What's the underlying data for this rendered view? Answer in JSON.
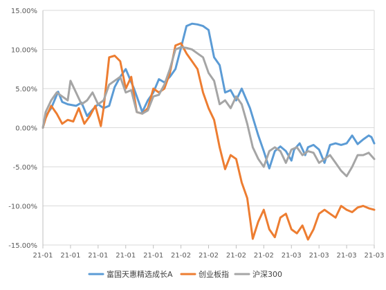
{
  "chart_data": {
    "type": "line",
    "title": "",
    "xlabel": "",
    "ylabel": "",
    "ylim": [
      -15,
      15
    ],
    "y_ticks": [
      15,
      10,
      5,
      0,
      -5,
      -10,
      -15
    ],
    "y_tick_labels": [
      "15.00%",
      "10.00%",
      "5.00%",
      "0.00%",
      "-5.00%",
      "-10.00%",
      "-15.00%"
    ],
    "x_tick_labels": [
      "21-01",
      "21-01",
      "21-01",
      "21-01",
      "21-01",
      "21-02",
      "21-02",
      "21-02",
      "21-02",
      "21-03",
      "21-03",
      "21-03",
      "21-03"
    ],
    "grid": true,
    "legend_position": "bottom",
    "series": [
      {
        "name": "富国天惠精选成长A",
        "color": "#5b9bd5",
        "x": [
          0,
          0.1,
          0.3,
          0.55,
          0.7,
          0.9,
          1.2,
          1.4,
          1.6,
          1.8,
          2.0,
          2.2,
          2.4,
          2.6,
          2.8,
          3.0,
          3.3,
          3.6,
          3.8,
          4.0,
          4.2,
          4.4,
          4.6,
          4.8,
          5.0,
          5.2,
          5.4,
          5.6,
          5.8,
          6.0,
          6.2,
          6.4,
          6.6,
          6.8,
          7.0,
          7.2,
          7.5,
          7.8,
          8.0,
          8.2,
          8.4,
          8.6,
          8.8,
          9.0,
          9.1,
          9.3,
          9.5,
          9.6,
          9.8,
          10.0,
          10.2,
          10.4,
          10.6,
          10.8,
          11.0,
          11.2,
          11.4,
          11.6,
          11.8,
          11.9,
          12.0
        ],
        "values": [
          0,
          1.5,
          2.5,
          4.6,
          3.3,
          3.0,
          2.8,
          3.2,
          1.5,
          2.3,
          3.0,
          2.5,
          2.8,
          5.2,
          6.5,
          7.5,
          5.0,
          2.0,
          3.5,
          4.5,
          6.2,
          5.8,
          6.5,
          7.5,
          10.2,
          13.0,
          13.3,
          13.2,
          13.0,
          12.5,
          9.0,
          8.0,
          4.5,
          4.8,
          3.5,
          5.0,
          2.5,
          -1.0,
          -3.0,
          -5.2,
          -3.0,
          -2.4,
          -3.0,
          -4.2,
          -2.8,
          -2.0,
          -3.5,
          -2.5,
          -2.2,
          -2.8,
          -4.5,
          -2.2,
          -2.0,
          -2.2,
          -2.0,
          -1.0,
          -2.1,
          -1.5,
          -1.0,
          -1.2,
          -2.0
        ]
      },
      {
        "name": "创业板指",
        "color": "#ed7d31",
        "x": [
          0,
          0.1,
          0.3,
          0.5,
          0.7,
          0.9,
          1.1,
          1.3,
          1.5,
          1.7,
          1.9,
          2.1,
          2.2,
          2.4,
          2.6,
          2.8,
          3.0,
          3.2,
          3.4,
          3.6,
          3.8,
          4.0,
          4.2,
          4.4,
          4.6,
          4.8,
          5.0,
          5.2,
          5.4,
          5.6,
          5.8,
          6.0,
          6.2,
          6.4,
          6.6,
          6.8,
          7.0,
          7.2,
          7.4,
          7.6,
          7.8,
          8.0,
          8.2,
          8.4,
          8.6,
          8.8,
          9.0,
          9.2,
          9.4,
          9.6,
          9.8,
          10.0,
          10.2,
          10.4,
          10.6,
          10.8,
          11.0,
          11.2,
          11.4,
          11.6,
          11.8,
          12.0
        ],
        "values": [
          0,
          1.2,
          2.8,
          1.8,
          0.5,
          1.0,
          0.8,
          2.5,
          0.5,
          1.5,
          2.8,
          0.2,
          2.5,
          9.0,
          9.2,
          8.5,
          5.0,
          6.5,
          2.0,
          1.8,
          2.5,
          5.0,
          4.5,
          5.0,
          7.0,
          10.5,
          10.8,
          9.5,
          8.5,
          7.5,
          4.5,
          2.5,
          1.0,
          -2.5,
          -5.3,
          -3.5,
          -4.0,
          -7.0,
          -9.0,
          -14.2,
          -12.0,
          -10.5,
          -13.0,
          -14.0,
          -11.5,
          -11.0,
          -13.0,
          -13.5,
          -12.5,
          -14.3,
          -13.0,
          -11.0,
          -10.5,
          -11.0,
          -11.5,
          -10.0,
          -10.5,
          -10.8,
          -10.2,
          -10.0,
          -10.3,
          -10.5
        ]
      },
      {
        "name": "沪深300",
        "color": "#a5a5a5",
        "x": [
          0,
          0.1,
          0.3,
          0.5,
          0.7,
          0.9,
          1.0,
          1.2,
          1.4,
          1.6,
          1.8,
          2.0,
          2.2,
          2.4,
          2.6,
          2.8,
          3.0,
          3.2,
          3.4,
          3.6,
          3.8,
          4.0,
          4.2,
          4.4,
          4.6,
          4.8,
          5.0,
          5.2,
          5.4,
          5.6,
          5.8,
          6.0,
          6.2,
          6.4,
          6.6,
          6.8,
          7.0,
          7.2,
          7.4,
          7.6,
          7.8,
          8.0,
          8.2,
          8.4,
          8.6,
          8.8,
          9.0,
          9.2,
          9.4,
          9.6,
          9.8,
          10.0,
          10.2,
          10.4,
          10.6,
          10.8,
          11.0,
          11.2,
          11.4,
          11.6,
          11.8,
          12.0
        ],
        "values": [
          0,
          2.0,
          3.5,
          4.5,
          4.0,
          3.5,
          6.0,
          4.5,
          3.0,
          3.5,
          4.5,
          3.0,
          3.5,
          5.5,
          6.0,
          6.5,
          4.5,
          4.8,
          2.0,
          1.8,
          2.2,
          4.0,
          4.2,
          5.5,
          7.5,
          10.0,
          10.3,
          10.2,
          10.0,
          9.5,
          9.0,
          7.0,
          6.0,
          3.0,
          3.5,
          2.5,
          4.0,
          3.0,
          0.5,
          -2.5,
          -4.0,
          -5.0,
          -3.0,
          -2.5,
          -3.0,
          -4.5,
          -2.8,
          -2.5,
          -3.5,
          -3.0,
          -3.2,
          -4.5,
          -4.0,
          -3.5,
          -4.5,
          -5.5,
          -6.2,
          -5.0,
          -3.5,
          -3.5,
          -3.2,
          -4.0
        ]
      }
    ]
  }
}
